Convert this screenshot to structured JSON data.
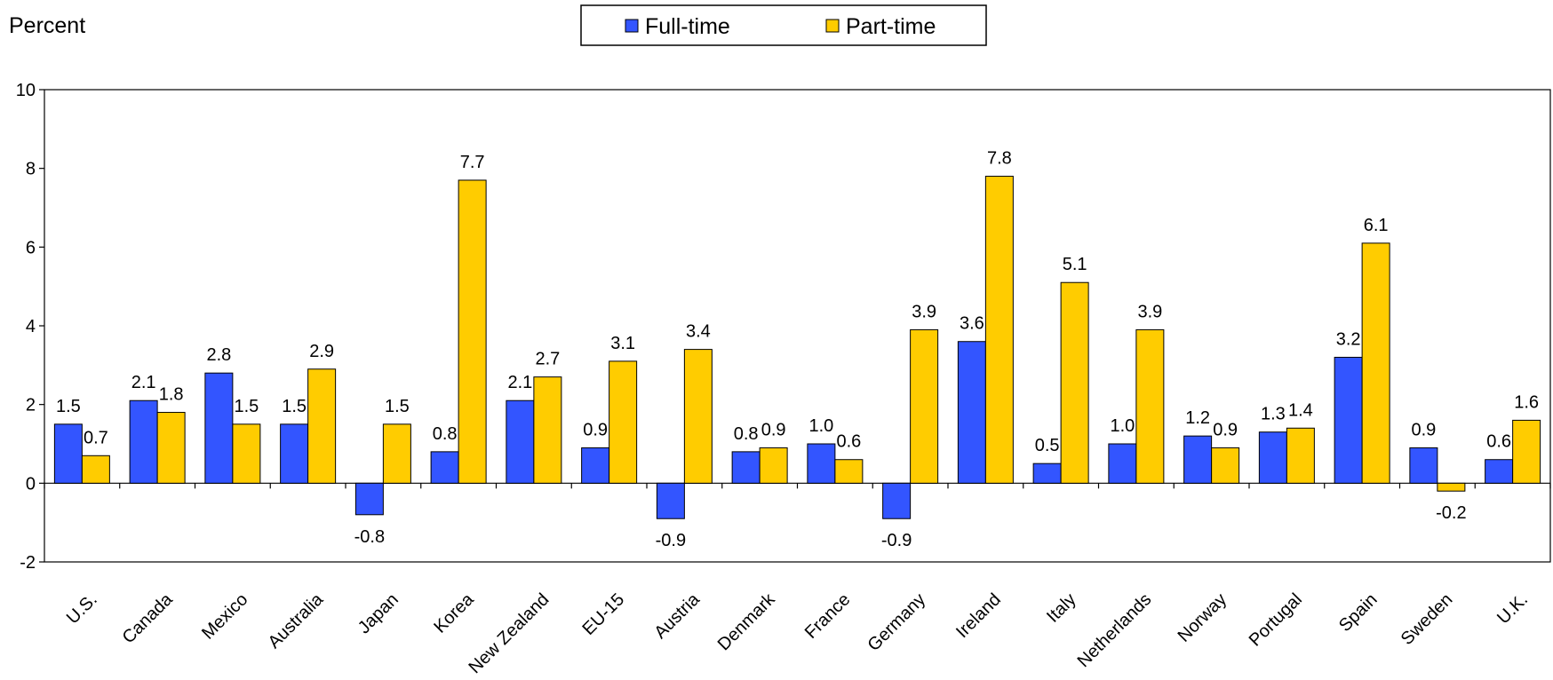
{
  "chart_data": {
    "type": "bar",
    "ylabel": "Percent",
    "ylim": [
      -2,
      10
    ],
    "yticks": [
      -2,
      0,
      2,
      4,
      6,
      8,
      10
    ],
    "grid": false,
    "legend_position": "top-center",
    "categories": [
      "U.S.",
      "Canada",
      "Mexico",
      "Australia",
      "Japan",
      "Korea",
      "New Zealand",
      "EU-15",
      "Austria",
      "Denmark",
      "France",
      "Germany",
      "Ireland",
      "Italy",
      "Netherlands",
      "Norway",
      "Portugal",
      "Spain",
      "Sweden",
      "U.K."
    ],
    "series": [
      {
        "name": "Full-time",
        "color": "#3355ff",
        "values": [
          1.5,
          2.1,
          2.8,
          1.5,
          -0.8,
          0.8,
          2.1,
          0.9,
          -0.9,
          0.8,
          1.0,
          -0.9,
          3.6,
          0.5,
          1.0,
          1.2,
          1.3,
          3.2,
          0.9,
          0.6
        ],
        "labels": [
          "1.5",
          "2.1",
          "2.8",
          "1.5",
          "-0.8",
          "0.8",
          "2.1",
          "0.9",
          "-0.9",
          "0.8",
          "1.0",
          "-0.9",
          "3.6",
          "0.5",
          "1.0",
          "1.2",
          "1.3",
          "3.2",
          "0.9",
          "0.6"
        ]
      },
      {
        "name": "Part-time",
        "color": "#ffcc00",
        "values": [
          0.7,
          1.8,
          1.5,
          2.9,
          1.5,
          7.7,
          2.7,
          3.1,
          3.4,
          0.9,
          0.6,
          3.9,
          7.8,
          5.1,
          3.9,
          0.9,
          1.4,
          6.1,
          -0.2,
          1.6
        ],
        "labels": [
          "0.7",
          "1.8",
          "1.5",
          "2.9",
          "1.5",
          "7.7",
          "2.7",
          "3.1",
          "3.4",
          "0.9",
          "0.6",
          "3.9",
          "7.8",
          "5.1",
          "3.9",
          "0.9",
          "1.4",
          "6.1",
          "-0.2",
          "1.6"
        ]
      }
    ]
  }
}
